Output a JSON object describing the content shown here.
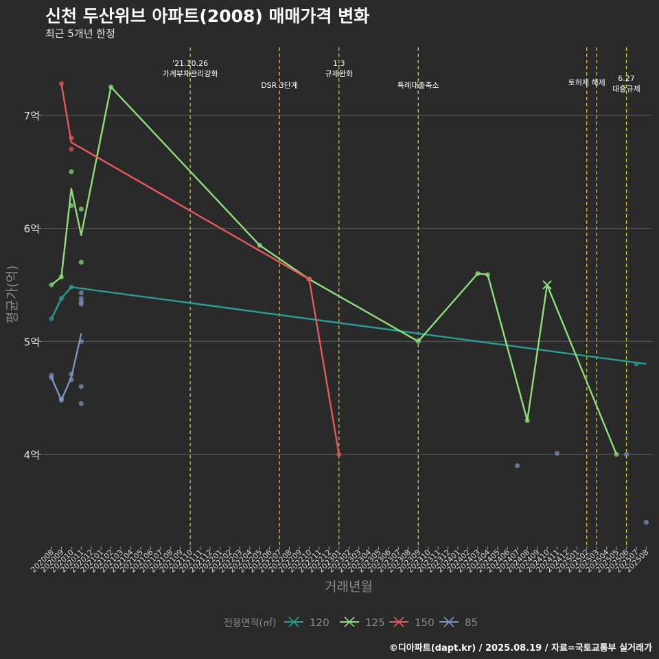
{
  "title": "신천 두산위브 아파트(2008) 매매가격 변화",
  "subtitle": "최근 5개년 한정",
  "footer": "©디아파트(dapt.kr) / 2025.08.19 / 자료=국토교통부 실거래가",
  "chart_data": {
    "type": "line",
    "xlabel": "거래년월",
    "ylabel": "평균가(억)",
    "x_ticks": [
      "202008",
      "202009",
      "202010",
      "202011",
      "202012",
      "202101",
      "202102",
      "202103",
      "202104",
      "202105",
      "202106",
      "202107",
      "202108",
      "202109",
      "202110",
      "202111",
      "202112",
      "202201",
      "202202",
      "202203",
      "202204",
      "202205",
      "202206",
      "202207",
      "202208",
      "202209",
      "202210",
      "202211",
      "202212",
      "202301",
      "202302",
      "202303",
      "202304",
      "202305",
      "202306",
      "202307",
      "202308",
      "202309",
      "202310",
      "202311",
      "202312",
      "202401",
      "202402",
      "202403",
      "202404",
      "202405",
      "202406",
      "202407",
      "202408",
      "202409",
      "202410",
      "202411",
      "202412",
      "202501",
      "202502",
      "202503",
      "202504",
      "202505",
      "202506",
      "202507",
      "202508"
    ],
    "y_ticks": [
      {
        "value": 4,
        "label": "4억"
      },
      {
        "value": 5,
        "label": "5억"
      },
      {
        "value": 6,
        "label": "6억"
      },
      {
        "value": 7,
        "label": "7억"
      }
    ],
    "ylim": [
      3.3,
      7.85
    ],
    "grid": true,
    "legend": {
      "title": "전용면적(㎡)",
      "position": "bottom",
      "entries": [
        "120",
        "125",
        "150",
        "85"
      ]
    },
    "series": [
      {
        "name": "120",
        "color": "#2a9d97",
        "line": [
          [
            "202008",
            5.2
          ],
          [
            "202009",
            5.38
          ],
          [
            "202010",
            5.48
          ],
          [
            "202508",
            4.8
          ]
        ],
        "points": [
          [
            "202008",
            5.2
          ],
          [
            "202009",
            5.38
          ],
          [
            "202010",
            5.48
          ],
          [
            "202507",
            4.8
          ]
        ]
      },
      {
        "name": "125",
        "color": "#8fe07a",
        "line": [
          [
            "202008",
            5.5
          ],
          [
            "202009",
            5.57
          ],
          [
            "202010",
            6.35
          ],
          [
            "202011",
            5.94
          ],
          [
            "202102",
            7.25
          ],
          [
            "202205",
            5.85
          ],
          [
            "202210",
            5.55
          ],
          [
            "202309",
            5.0
          ],
          [
            "202403",
            5.6
          ],
          [
            "202404",
            5.59
          ],
          [
            "202408",
            4.3
          ],
          [
            "202410",
            5.5
          ],
          [
            "202505",
            4.0
          ]
        ],
        "points": [
          [
            "202008",
            5.5
          ],
          [
            "202009",
            5.57
          ],
          [
            "202010",
            6.5
          ],
          [
            "202010",
            6.2
          ],
          [
            "202011",
            6.17
          ],
          [
            "202011",
            5.7
          ],
          [
            "202102",
            7.25
          ],
          [
            "202205",
            5.85
          ],
          [
            "202210",
            5.55
          ],
          [
            "202309",
            5.0
          ],
          [
            "202403",
            5.6
          ],
          [
            "202404",
            5.59
          ],
          [
            "202408",
            4.3
          ],
          [
            "202505",
            4.0
          ]
        ],
        "cross": [
          [
            "202410",
            5.5
          ]
        ]
      },
      {
        "name": "150",
        "color": "#e55a5a",
        "line": [
          [
            "202009",
            7.28
          ],
          [
            "202010",
            6.76
          ],
          [
            "202210",
            5.55
          ],
          [
            "202301",
            4.0
          ]
        ],
        "points": [
          [
            "202009",
            7.28
          ],
          [
            "202010",
            6.8
          ],
          [
            "202010",
            6.7
          ],
          [
            "202210",
            5.55
          ],
          [
            "202301",
            4.0
          ]
        ]
      },
      {
        "name": "85",
        "color": "#7c95c2",
        "line": [
          [
            "202008",
            4.68
          ],
          [
            "202009",
            4.48
          ],
          [
            "202010",
            4.68
          ],
          [
            "202011",
            5.07
          ]
        ],
        "points": [
          [
            "202008",
            4.7
          ],
          [
            "202008",
            4.68
          ],
          [
            "202009",
            4.49
          ],
          [
            "202009",
            4.48
          ],
          [
            "202010",
            4.71
          ],
          [
            "202010",
            4.66
          ],
          [
            "202011",
            5.0
          ],
          [
            "202011",
            5.43
          ],
          [
            "202011",
            5.38
          ],
          [
            "202011",
            5.35
          ],
          [
            "202011",
            5.33
          ],
          [
            "202011",
            4.6
          ],
          [
            "202011",
            4.45
          ],
          [
            "202407",
            3.9
          ],
          [
            "202411",
            4.01
          ],
          [
            "202506",
            4.0
          ],
          [
            "202508",
            3.4
          ]
        ]
      }
    ],
    "annotations": [
      {
        "x": "202110",
        "lines": [
          "'21.10.26",
          "가계부채관리강화"
        ],
        "level": 0
      },
      {
        "x": "202207",
        "lines": [
          "DSR 3단계"
        ],
        "level": 2
      },
      {
        "x": "202301",
        "lines": [
          "1.3",
          "규제완화"
        ],
        "level": 0
      },
      {
        "x": "202309",
        "lines": [
          "특례대출축소"
        ],
        "level": 2
      },
      {
        "x": "202502",
        "lines": [
          "토허제 해제"
        ],
        "level": 1
      },
      {
        "x": "202503",
        "lines": [],
        "level": 1
      },
      {
        "x": "202506",
        "lines": [
          "6.27",
          "대출규제"
        ],
        "level": 3
      }
    ]
  }
}
